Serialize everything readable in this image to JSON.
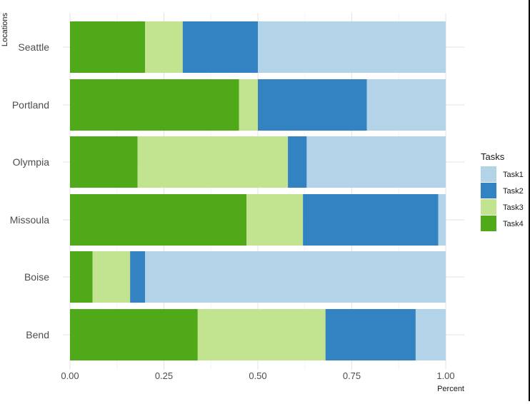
{
  "chart_data": {
    "type": "bar",
    "orientation": "horizontal",
    "stacked": true,
    "title": "",
    "xlabel": "Percent",
    "ylabel": "Locations",
    "xlim": [
      0,
      1
    ],
    "x_ticks": [
      "0.00",
      "0.25",
      "0.50",
      "0.75",
      "1.00"
    ],
    "x_tick_values": [
      0,
      0.25,
      0.5,
      0.75,
      1.0
    ],
    "grid": true,
    "legend": {
      "title": "Tasks",
      "position": "right"
    },
    "categories": [
      "Seattle",
      "Portland",
      "Olympia",
      "Missoula",
      "Boise",
      "Bend"
    ],
    "stack_order": [
      "Task4",
      "Task3",
      "Task2",
      "Task1"
    ],
    "series": [
      {
        "name": "Task1",
        "color": "#b3d3e8",
        "values": [
          0.5,
          0.21,
          0.37,
          0.02,
          0.8,
          0.08
        ]
      },
      {
        "name": "Task2",
        "color": "#3383c2",
        "values": [
          0.2,
          0.29,
          0.05,
          0.36,
          0.04,
          0.24
        ]
      },
      {
        "name": "Task3",
        "color": "#c2e390",
        "values": [
          0.1,
          0.05,
          0.4,
          0.15,
          0.1,
          0.34
        ]
      },
      {
        "name": "Task4",
        "color": "#4fa918",
        "values": [
          0.2,
          0.45,
          0.18,
          0.47,
          0.06,
          0.34
        ]
      }
    ]
  }
}
